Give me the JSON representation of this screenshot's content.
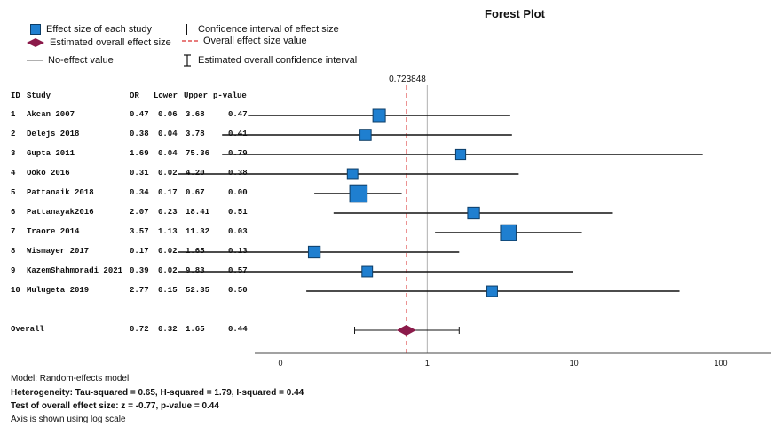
{
  "chart_title": "Forest Plot",
  "legend": {
    "effect_size": "Effect size of each study",
    "overall_estimate": "Estimated overall effect size",
    "no_effect": "No-effect value",
    "ci": "Confidence interval of effect size",
    "overall_value": "Overall effect size value",
    "overall_ci": "Estimated overall confidence interval"
  },
  "table_headers": [
    "ID",
    "Study",
    "OR",
    "Lower",
    "Upper",
    "p-value"
  ],
  "colors": {
    "marker": "#1f7fd0",
    "marker_border": "#0d3d66",
    "diamond": "#8b1a4a",
    "overall_line": "#e05050",
    "no_effect_line": "#b0b0b0"
  },
  "chart_data": {
    "type": "forest",
    "title": "Forest Plot",
    "x_scale": "log",
    "x_ticks": [
      0.1,
      1,
      10,
      100
    ],
    "x_tick_labels": [
      "0",
      "1",
      "10",
      "100"
    ],
    "overall_label": "0.723848",
    "overall_value": 0.723848,
    "no_effect_value": 1,
    "studies": [
      {
        "id": "1",
        "study": "Akcan 2007",
        "or": 0.47,
        "lower": 0.06,
        "upper": 3.68,
        "p": "0.47",
        "weight": 1.0
      },
      {
        "id": "2",
        "study": "Delejs 2018",
        "or": 0.38,
        "lower": 0.04,
        "upper": 3.78,
        "p": "0.41",
        "weight": 0.8
      },
      {
        "id": "3",
        "study": "Gupta 2011",
        "or": 1.69,
        "lower": 0.04,
        "upper": 75.36,
        "p": "0.79",
        "weight": 0.6
      },
      {
        "id": "4",
        "study": "Ooko 2016",
        "or": 0.31,
        "lower": 0.02,
        "upper": 4.2,
        "p": "0.38",
        "weight": 0.7
      },
      {
        "id": "5",
        "study": "Pattanaik 2018",
        "or": 0.34,
        "lower": 0.17,
        "upper": 0.67,
        "p": "0.00",
        "weight": 1.8
      },
      {
        "id": "6",
        "study": "Pattanayak2016",
        "or": 2.07,
        "lower": 0.23,
        "upper": 18.41,
        "p": "0.51",
        "weight": 0.9
      },
      {
        "id": "7",
        "study": "Traore 2014",
        "or": 3.57,
        "lower": 1.13,
        "upper": 11.32,
        "p": "0.03",
        "weight": 1.5
      },
      {
        "id": "8",
        "study": "Wismayer 2017",
        "or": 0.17,
        "lower": 0.02,
        "upper": 1.65,
        "p": "0.13",
        "weight": 0.9
      },
      {
        "id": "9",
        "study": "KazemShahmoradi 2021",
        "or": 0.39,
        "lower": 0.02,
        "upper": 9.83,
        "p": "0.57",
        "weight": 0.7
      },
      {
        "id": "10",
        "study": "Mulugeta 2019",
        "or": 2.77,
        "lower": 0.15,
        "upper": 52.35,
        "p": "0.50",
        "weight": 0.7
      }
    ],
    "overall": {
      "id": "",
      "study": "Overall",
      "or": 0.72,
      "lower": 0.32,
      "upper": 1.65,
      "p": "0.44"
    }
  },
  "footer": {
    "model": "Model: Random-effects model",
    "heterogeneity": "Heterogeneity: Tau-squared = 0.65, H-squared = 1.79, I-squared = 0.44",
    "overall_test": "Test of overall effect size: z = -0.77, p-value = 0.44",
    "axis_note": "Axis is shown using log scale"
  }
}
